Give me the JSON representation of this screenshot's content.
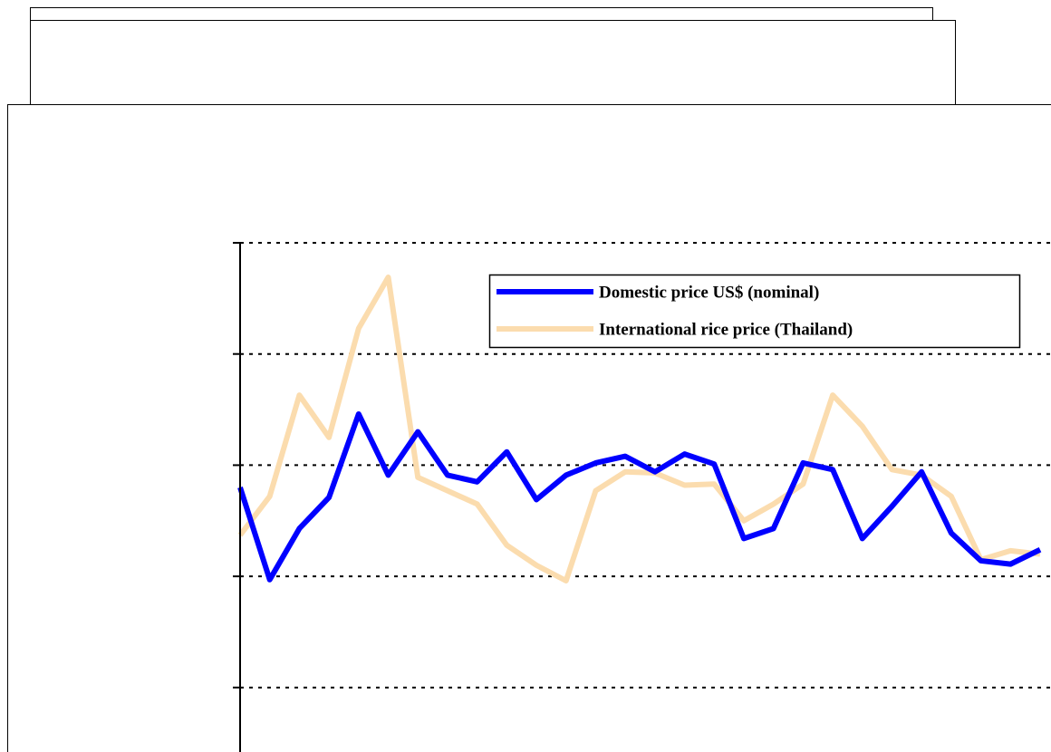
{
  "chart_data": {
    "type": "line",
    "x": [
      0,
      1,
      2,
      3,
      4,
      5,
      6,
      7,
      8,
      9,
      10,
      11,
      12,
      13,
      14,
      15,
      16,
      17,
      18,
      19,
      20,
      21,
      22,
      23,
      24,
      25,
      26,
      27
    ],
    "xlim": [
      0,
      27
    ],
    "ylim": [
      -0.58,
      4
    ],
    "yticks": [
      0,
      1,
      2,
      3,
      4
    ],
    "grid": true,
    "legend": "upper-right",
    "series": [
      {
        "name": "Domestic price US$ (nominal)",
        "color": "#0000ff",
        "values": [
          1.8,
          0.97,
          1.43,
          1.71,
          2.46,
          1.91,
          2.3,
          1.91,
          1.85,
          2.12,
          1.69,
          1.91,
          2.02,
          2.08,
          1.94,
          2.1,
          2.01,
          1.34,
          1.43,
          2.02,
          1.96,
          1.34,
          1.63,
          1.94,
          1.39,
          1.14,
          1.11,
          1.24
        ]
      },
      {
        "name": "International rice price  (Thailand)",
        "color": "#fbdcae",
        "values": [
          1.37,
          1.72,
          2.63,
          2.25,
          3.23,
          3.69,
          1.89,
          1.77,
          1.65,
          1.28,
          1.1,
          0.96,
          1.77,
          1.94,
          1.93,
          1.82,
          1.83,
          1.5,
          1.65,
          1.83,
          2.63,
          2.35,
          1.96,
          1.91,
          1.72,
          1.15,
          1.23,
          1.2
        ]
      }
    ]
  }
}
